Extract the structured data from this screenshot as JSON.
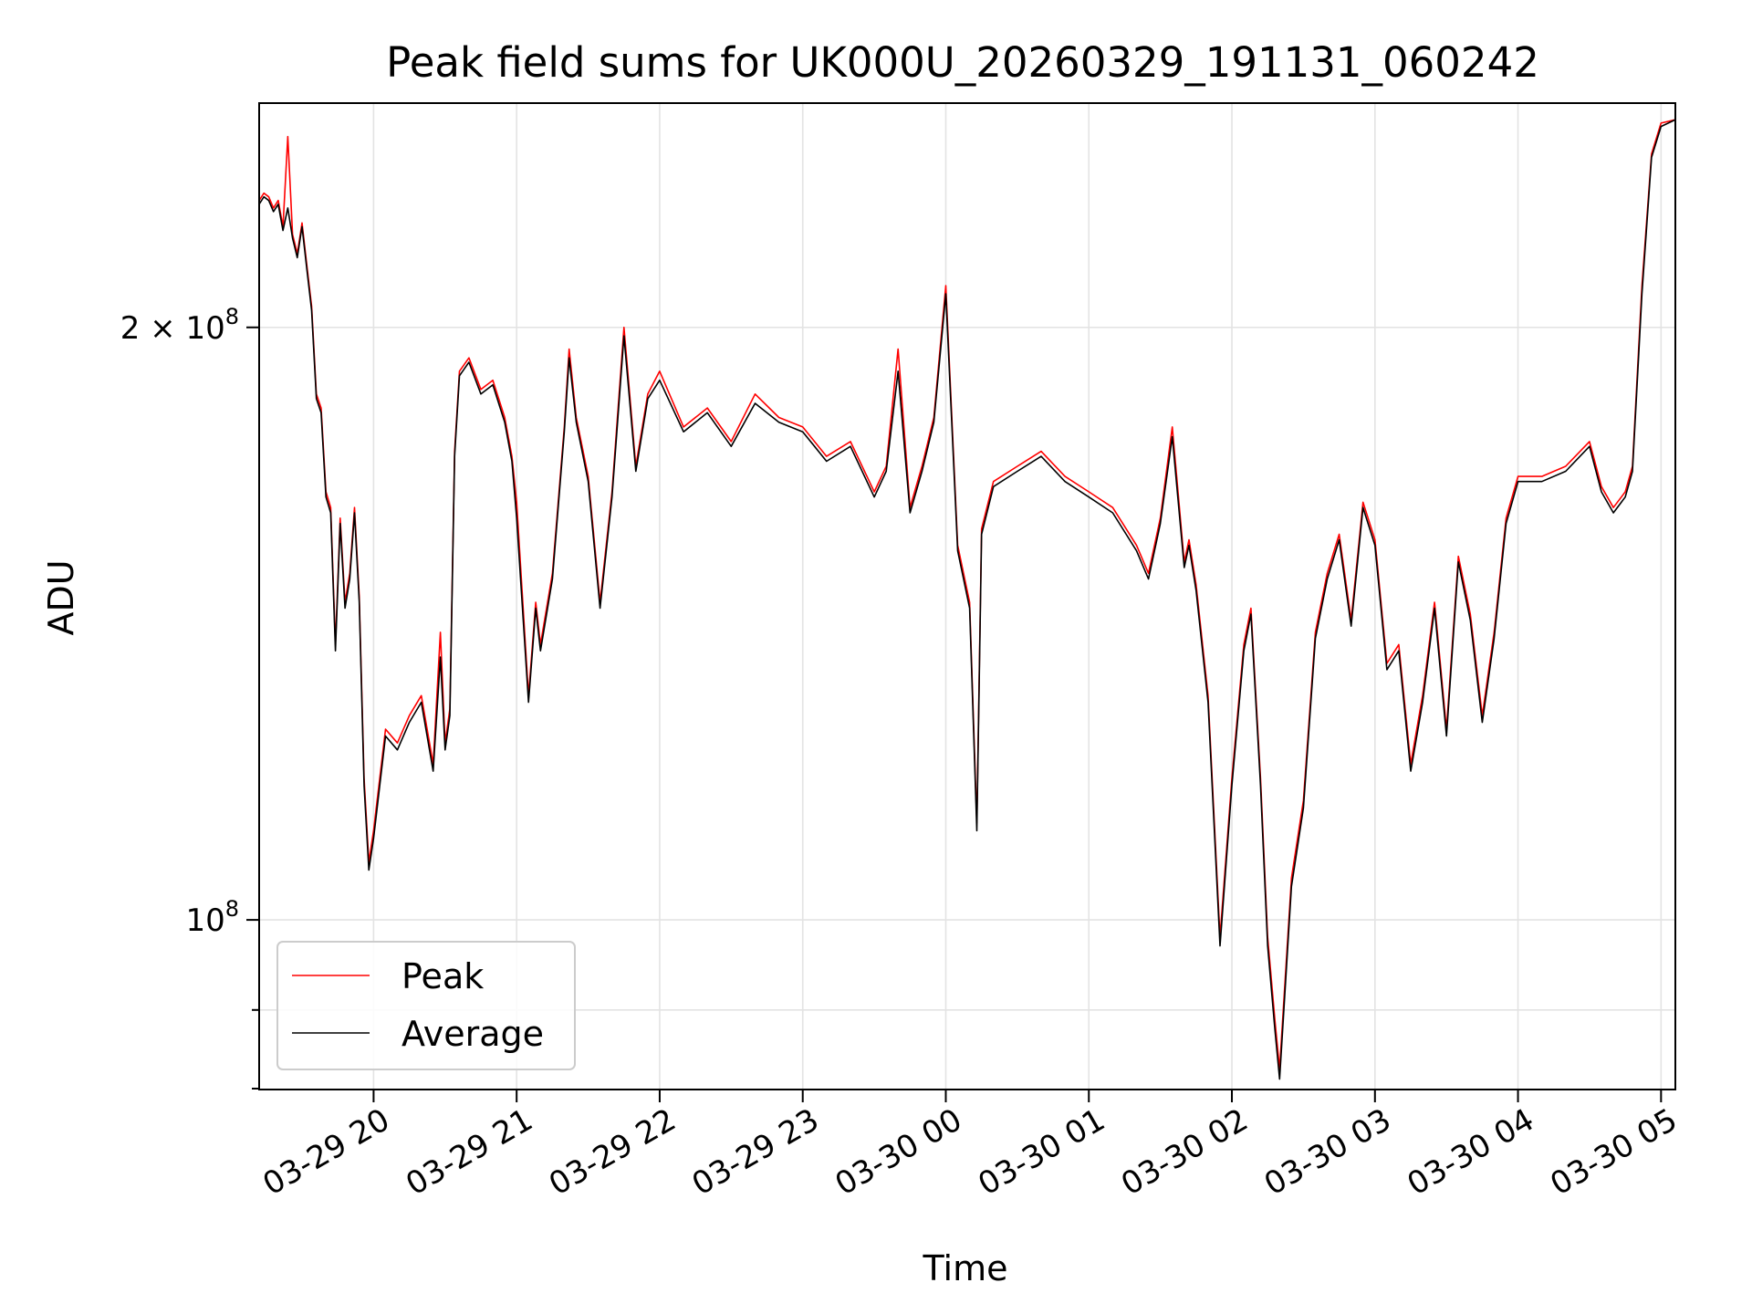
{
  "chart_data": {
    "type": "line",
    "title": "Peak field sums for UK000U_20260329_191131_060242",
    "xlabel": "Time",
    "ylabel": "ADU",
    "yscale": "log",
    "grid": true,
    "legend_position": "lower-left",
    "xlim": [
      "2026-03-29 19:12",
      "2026-03-30 05:06"
    ],
    "ylim": [
      82000000,
      260000000
    ],
    "x_ticks": [
      {
        "value": "2026-03-29 20:00",
        "label": "03-29 20"
      },
      {
        "value": "2026-03-29 21:00",
        "label": "03-29 21"
      },
      {
        "value": "2026-03-29 22:00",
        "label": "03-29 22"
      },
      {
        "value": "2026-03-29 23:00",
        "label": "03-29 23"
      },
      {
        "value": "2026-03-30 00:00",
        "label": "03-30 00"
      },
      {
        "value": "2026-03-30 01:00",
        "label": "03-30 01"
      },
      {
        "value": "2026-03-30 02:00",
        "label": "03-30 02"
      },
      {
        "value": "2026-03-30 03:00",
        "label": "03-30 03"
      },
      {
        "value": "2026-03-30 04:00",
        "label": "03-30 04"
      },
      {
        "value": "2026-03-30 05:00",
        "label": "03-30 05"
      }
    ],
    "y_ticks_major": [
      {
        "value": 200000000,
        "label_base": "2 × 10",
        "label_exp": "8"
      },
      {
        "value": 100000000,
        "label_base": "10",
        "label_exp": "8"
      }
    ],
    "y_ticks_minor": [
      90000000
    ],
    "x": [
      "2026-03-29 19:12",
      "2026-03-29 19:14",
      "2026-03-29 19:16",
      "2026-03-29 19:18",
      "2026-03-29 19:20",
      "2026-03-29 19:22",
      "2026-03-29 19:24",
      "2026-03-29 19:26",
      "2026-03-29 19:28",
      "2026-03-29 19:30",
      "2026-03-29 19:32",
      "2026-03-29 19:34",
      "2026-03-29 19:36",
      "2026-03-29 19:38",
      "2026-03-29 19:40",
      "2026-03-29 19:42",
      "2026-03-29 19:44",
      "2026-03-29 19:46",
      "2026-03-29 19:48",
      "2026-03-29 19:50",
      "2026-03-29 19:52",
      "2026-03-29 19:54",
      "2026-03-29 19:56",
      "2026-03-29 19:58",
      "2026-03-29 20:00",
      "2026-03-29 20:05",
      "2026-03-29 20:10",
      "2026-03-29 20:15",
      "2026-03-29 20:20",
      "2026-03-29 20:25",
      "2026-03-29 20:28",
      "2026-03-29 20:30",
      "2026-03-29 20:32",
      "2026-03-29 20:34",
      "2026-03-29 20:36",
      "2026-03-29 20:40",
      "2026-03-29 20:45",
      "2026-03-29 20:50",
      "2026-03-29 20:55",
      "2026-03-29 20:58",
      "2026-03-29 21:00",
      "2026-03-29 21:05",
      "2026-03-29 21:08",
      "2026-03-29 21:10",
      "2026-03-29 21:15",
      "2026-03-29 21:20",
      "2026-03-29 21:22",
      "2026-03-29 21:25",
      "2026-03-29 21:30",
      "2026-03-29 21:35",
      "2026-03-29 21:40",
      "2026-03-29 21:45",
      "2026-03-29 21:50",
      "2026-03-29 21:55",
      "2026-03-29 22:00",
      "2026-03-29 22:10",
      "2026-03-29 22:20",
      "2026-03-29 22:30",
      "2026-03-29 22:40",
      "2026-03-29 22:50",
      "2026-03-29 23:00",
      "2026-03-29 23:10",
      "2026-03-29 23:20",
      "2026-03-29 23:30",
      "2026-03-29 23:35",
      "2026-03-29 23:40",
      "2026-03-29 23:45",
      "2026-03-29 23:50",
      "2026-03-29 23:55",
      "2026-03-30 00:00",
      "2026-03-30 00:05",
      "2026-03-30 00:10",
      "2026-03-30 00:13",
      "2026-03-30 00:15",
      "2026-03-30 00:20",
      "2026-03-30 00:30",
      "2026-03-30 00:40",
      "2026-03-30 00:50",
      "2026-03-30 01:00",
      "2026-03-30 01:10",
      "2026-03-30 01:20",
      "2026-03-30 01:25",
      "2026-03-30 01:30",
      "2026-03-30 01:35",
      "2026-03-30 01:40",
      "2026-03-30 01:42",
      "2026-03-30 01:45",
      "2026-03-30 01:50",
      "2026-03-30 01:55",
      "2026-03-30 02:00",
      "2026-03-30 02:05",
      "2026-03-30 02:08",
      "2026-03-30 02:12",
      "2026-03-30 02:15",
      "2026-03-30 02:18",
      "2026-03-30 02:20",
      "2026-03-30 02:25",
      "2026-03-30 02:30",
      "2026-03-30 02:35",
      "2026-03-30 02:40",
      "2026-03-30 02:45",
      "2026-03-30 02:50",
      "2026-03-30 02:55",
      "2026-03-30 03:00",
      "2026-03-30 03:05",
      "2026-03-30 03:10",
      "2026-03-30 03:15",
      "2026-03-30 03:20",
      "2026-03-30 03:25",
      "2026-03-30 03:30",
      "2026-03-30 03:35",
      "2026-03-30 03:40",
      "2026-03-30 03:45",
      "2026-03-30 03:50",
      "2026-03-30 03:55",
      "2026-03-30 04:00",
      "2026-03-30 04:10",
      "2026-03-30 04:20",
      "2026-03-30 04:30",
      "2026-03-30 04:35",
      "2026-03-30 04:40",
      "2026-03-30 04:45",
      "2026-03-30 04:48",
      "2026-03-30 04:52",
      "2026-03-30 04:56",
      "2026-03-30 05:00",
      "2026-03-30 05:06"
    ],
    "series": [
      {
        "name": "Peak",
        "color": "#ff0000",
        "values": [
          232000000,
          234000000,
          233000000,
          230000000,
          232000000,
          225000000,
          250000000,
          223000000,
          218000000,
          226000000,
          215000000,
          205000000,
          185000000,
          182000000,
          165000000,
          162000000,
          138000000,
          160000000,
          145000000,
          150000000,
          162000000,
          146000000,
          118000000,
          107000000,
          111000000,
          125000000,
          123000000,
          127000000,
          130000000,
          120000000,
          140000000,
          123000000,
          128000000,
          173000000,
          190000000,
          193000000,
          186000000,
          188000000,
          180000000,
          172000000,
          163000000,
          130000000,
          145000000,
          138000000,
          150000000,
          178000000,
          195000000,
          180000000,
          168000000,
          145000000,
          165000000,
          200000000,
          170000000,
          185000000,
          190000000,
          178000000,
          182000000,
          175000000,
          185000000,
          180000000,
          178000000,
          172000000,
          175000000,
          165000000,
          170000000,
          195000000,
          162000000,
          170000000,
          180000000,
          210000000,
          155000000,
          145000000,
          112000000,
          158000000,
          167000000,
          170000000,
          173000000,
          168000000,
          165000000,
          162000000,
          155000000,
          150000000,
          160000000,
          178000000,
          152000000,
          156000000,
          148000000,
          130000000,
          98000000,
          118000000,
          138000000,
          144000000,
          118000000,
          98000000,
          89000000,
          84000000,
          105000000,
          115000000,
          140000000,
          150000000,
          157000000,
          142000000,
          163000000,
          156000000,
          135000000,
          138000000,
          120000000,
          130000000,
          145000000,
          125000000,
          153000000,
          143000000,
          127000000,
          140000000,
          160000000,
          168000000,
          168000000,
          170000000,
          175000000,
          166000000,
          162000000,
          165000000,
          170000000,
          210000000,
          245000000,
          254000000,
          255000000
        ]
      },
      {
        "name": "Average",
        "color": "#000000",
        "values": [
          231000000,
          233000000,
          232000000,
          229000000,
          231000000,
          224000000,
          230000000,
          222000000,
          217000000,
          225000000,
          214000000,
          204000000,
          184000000,
          181000000,
          164000000,
          161000000,
          137000000,
          159000000,
          144000000,
          149000000,
          161000000,
          145000000,
          117000000,
          106000000,
          110000000,
          124000000,
          122000000,
          126000000,
          129000000,
          119000000,
          136000000,
          122000000,
          127000000,
          172000000,
          189000000,
          192000000,
          185000000,
          187000000,
          179000000,
          171000000,
          160000000,
          129000000,
          144000000,
          137000000,
          149000000,
          177000000,
          193000000,
          179000000,
          167000000,
          144000000,
          164000000,
          198000000,
          169000000,
          184000000,
          188000000,
          177000000,
          181000000,
          174000000,
          183000000,
          179000000,
          177000000,
          171000000,
          174000000,
          164000000,
          169000000,
          190000000,
          161000000,
          169000000,
          179000000,
          208000000,
          154000000,
          144000000,
          111000000,
          157000000,
          166000000,
          169000000,
          172000000,
          167000000,
          164000000,
          161000000,
          154000000,
          149000000,
          159000000,
          176000000,
          151000000,
          155000000,
          147000000,
          129000000,
          97000000,
          117000000,
          137000000,
          143000000,
          117000000,
          97000000,
          88000000,
          83000000,
          104000000,
          114000000,
          139000000,
          149000000,
          156000000,
          141000000,
          162000000,
          155000000,
          134000000,
          137000000,
          119000000,
          129000000,
          144000000,
          124000000,
          152000000,
          142000000,
          126000000,
          139000000,
          159000000,
          167000000,
          167000000,
          169000000,
          174000000,
          165000000,
          161000000,
          164000000,
          169000000,
          208000000,
          244000000,
          253000000,
          255000000
        ]
      }
    ]
  }
}
